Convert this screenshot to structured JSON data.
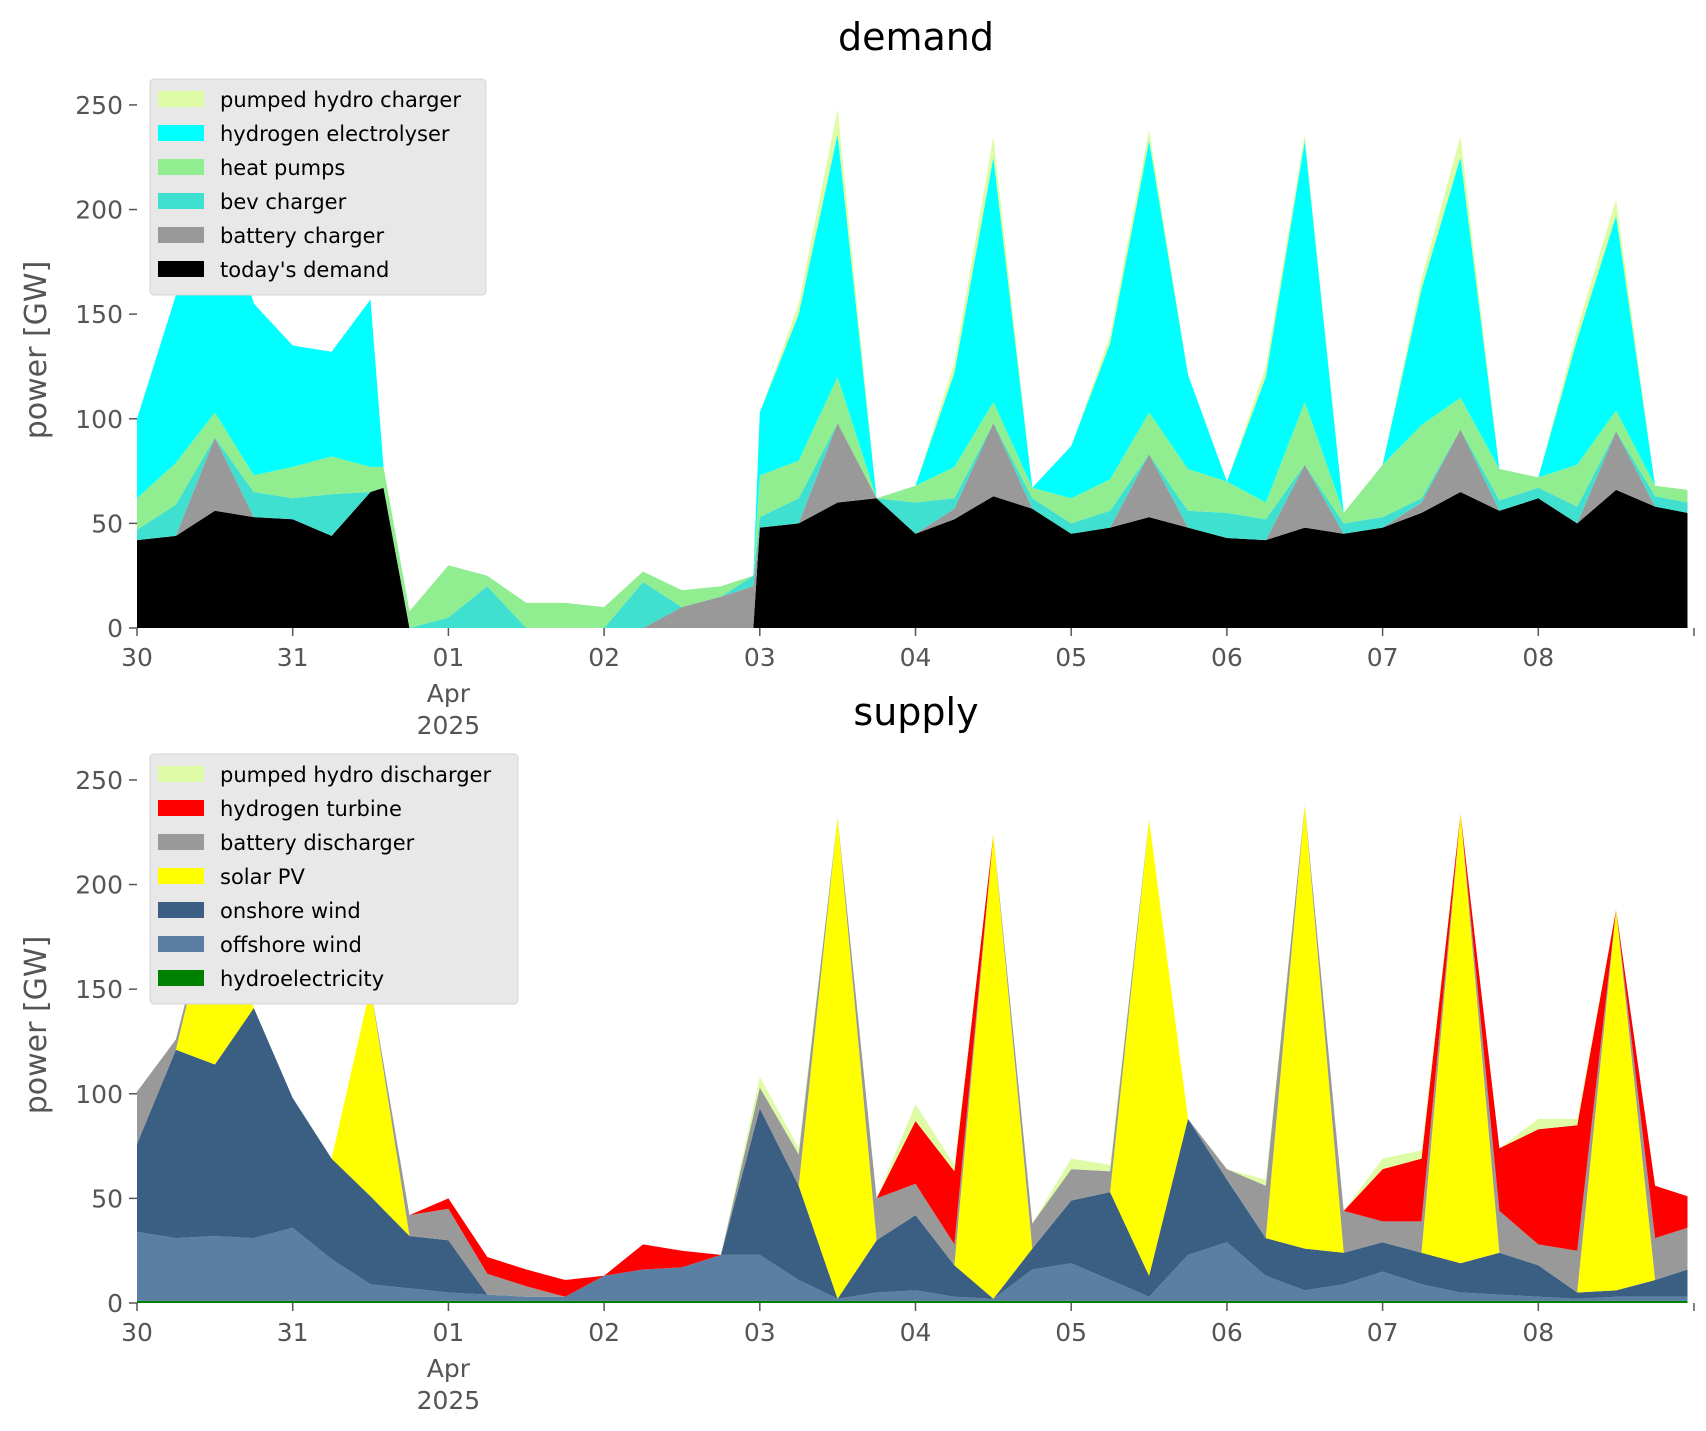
{
  "chart_data": [
    {
      "type": "area",
      "stacked": true,
      "title": "demand",
      "xlabel": "",
      "ylabel": "power [GW]",
      "x_range": [
        "2025-03-30",
        "2025-04-09"
      ],
      "x_ticks": [
        {
          "date": "2025-03-30",
          "label": "30",
          "sub": []
        },
        {
          "date": "2025-03-31",
          "label": "31",
          "sub": []
        },
        {
          "date": "2025-04-01",
          "label": "01",
          "sub": [
            "Apr",
            "2025"
          ]
        },
        {
          "date": "2025-04-02",
          "label": "02",
          "sub": []
        },
        {
          "date": "2025-04-03",
          "label": "03",
          "sub": []
        },
        {
          "date": "2025-04-04",
          "label": "04",
          "sub": []
        },
        {
          "date": "2025-04-05",
          "label": "05",
          "sub": []
        },
        {
          "date": "2025-04-06",
          "label": "06",
          "sub": []
        },
        {
          "date": "2025-04-07",
          "label": "07",
          "sub": []
        },
        {
          "date": "2025-04-08",
          "label": "08",
          "sub": []
        },
        {
          "date": "2025-04-09",
          "label": "",
          "sub": []
        }
      ],
      "ylim": [
        0,
        260
      ],
      "y_ticks": [
        0,
        50,
        100,
        150,
        200,
        250
      ],
      "grid": false,
      "legend": "top-left",
      "x": [
        "2025-03-30 00:00",
        "2025-03-30 06:00",
        "2025-03-30 12:00",
        "2025-03-30 18:00",
        "2025-03-31 00:00",
        "2025-03-31 06:00",
        "2025-03-31 12:00",
        "2025-03-31 14:00",
        "2025-03-31 18:00",
        "2025-04-01 00:00",
        "2025-04-01 06:00",
        "2025-04-01 12:00",
        "2025-04-01 18:00",
        "2025-04-02 00:00",
        "2025-04-02 06:00",
        "2025-04-02 12:00",
        "2025-04-02 18:00",
        "2025-04-02 23:00",
        "2025-04-03 00:00",
        "2025-04-03 06:00",
        "2025-04-03 12:00",
        "2025-04-03 18:00",
        "2025-04-04 00:00",
        "2025-04-04 06:00",
        "2025-04-04 12:00",
        "2025-04-04 18:00",
        "2025-04-05 00:00",
        "2025-04-05 06:00",
        "2025-04-05 12:00",
        "2025-04-05 18:00",
        "2025-04-06 00:00",
        "2025-04-06 06:00",
        "2025-04-06 12:00",
        "2025-04-06 18:00",
        "2025-04-07 00:00",
        "2025-04-07 06:00",
        "2025-04-07 12:00",
        "2025-04-07 18:00",
        "2025-04-08 00:00",
        "2025-04-08 06:00",
        "2025-04-08 12:00",
        "2025-04-08 18:00",
        "2025-04-08 23:00"
      ],
      "series": [
        {
          "name": "today's demand",
          "color": "#000000",
          "values": [
            42,
            44,
            56,
            53,
            52,
            44,
            65,
            67,
            0,
            0,
            0,
            0,
            0,
            0,
            0,
            0,
            0,
            0,
            48,
            50,
            60,
            62,
            45,
            52,
            63,
            57,
            45,
            48,
            53,
            48,
            43,
            42,
            48,
            45,
            48,
            55,
            65,
            56,
            62,
            50,
            66,
            58,
            55
          ]
        },
        {
          "name": "battery charger",
          "color": "#999999",
          "values": [
            0,
            0,
            35,
            0,
            0,
            0,
            0,
            0,
            0,
            0,
            0,
            0,
            0,
            0,
            0,
            10,
            15,
            20,
            0,
            0,
            38,
            0,
            0,
            5,
            35,
            0,
            0,
            0,
            30,
            0,
            0,
            0,
            30,
            0,
            0,
            5,
            30,
            0,
            0,
            0,
            28,
            0,
            0
          ]
        },
        {
          "name": "bev charger",
          "color": "#40e0d0",
          "values": [
            5,
            15,
            0,
            12,
            10,
            20,
            0,
            0,
            0,
            5,
            20,
            0,
            0,
            0,
            22,
            0,
            0,
            5,
            5,
            12,
            0,
            0,
            15,
            5,
            0,
            5,
            5,
            8,
            0,
            8,
            12,
            10,
            0,
            5,
            5,
            2,
            0,
            5,
            5,
            8,
            0,
            5,
            5
          ]
        },
        {
          "name": "heat pumps",
          "color": "#90ee90",
          "values": [
            15,
            20,
            12,
            8,
            15,
            18,
            12,
            10,
            8,
            25,
            5,
            12,
            12,
            10,
            5,
            8,
            5,
            0,
            20,
            18,
            22,
            0,
            8,
            15,
            10,
            5,
            12,
            15,
            20,
            20,
            15,
            8,
            30,
            5,
            25,
            35,
            15,
            15,
            5,
            20,
            10,
            5,
            6
          ]
        },
        {
          "name": "hydrogen electrolyser",
          "color": "#00ffff",
          "values": [
            38,
            80,
            118,
            82,
            58,
            50,
            80,
            0,
            0,
            0,
            0,
            0,
            0,
            0,
            0,
            0,
            0,
            0,
            30,
            70,
            116,
            0,
            0,
            45,
            117,
            0,
            25,
            65,
            130,
            45,
            0,
            60,
            125,
            0,
            0,
            65,
            115,
            0,
            0,
            60,
            93,
            0,
            0
          ]
        },
        {
          "name": "pumped hydro charger",
          "color": "#ddfca5",
          "values": [
            0,
            0,
            0,
            0,
            0,
            0,
            0,
            0,
            0,
            0,
            0,
            0,
            0,
            0,
            0,
            0,
            0,
            0,
            0,
            5,
            12,
            0,
            0,
            5,
            10,
            0,
            0,
            4,
            5,
            0,
            0,
            5,
            3,
            0,
            0,
            5,
            10,
            0,
            0,
            5,
            8,
            0,
            0
          ]
        }
      ]
    },
    {
      "type": "area",
      "stacked": true,
      "title": "supply",
      "xlabel": "",
      "ylabel": "power [GW]",
      "x_range": [
        "2025-03-30",
        "2025-04-09"
      ],
      "x_ticks": [
        {
          "date": "2025-03-30",
          "label": "30",
          "sub": []
        },
        {
          "date": "2025-03-31",
          "label": "31",
          "sub": []
        },
        {
          "date": "2025-04-01",
          "label": "01",
          "sub": [
            "Apr",
            "2025"
          ]
        },
        {
          "date": "2025-04-02",
          "label": "02",
          "sub": []
        },
        {
          "date": "2025-04-03",
          "label": "03",
          "sub": []
        },
        {
          "date": "2025-04-04",
          "label": "04",
          "sub": []
        },
        {
          "date": "2025-04-05",
          "label": "05",
          "sub": []
        },
        {
          "date": "2025-04-06",
          "label": "06",
          "sub": []
        },
        {
          "date": "2025-04-07",
          "label": "07",
          "sub": []
        },
        {
          "date": "2025-04-08",
          "label": "08",
          "sub": []
        },
        {
          "date": "2025-04-09",
          "label": "",
          "sub": []
        }
      ],
      "ylim": [
        0,
        260
      ],
      "y_ticks": [
        0,
        50,
        100,
        150,
        200,
        250
      ],
      "grid": false,
      "legend": "top-left",
      "x": [
        "2025-03-30 00:00",
        "2025-03-30 06:00",
        "2025-03-30 12:00",
        "2025-03-30 18:00",
        "2025-03-31 00:00",
        "2025-03-31 06:00",
        "2025-03-31 12:00",
        "2025-03-31 18:00",
        "2025-04-01 00:00",
        "2025-04-01 06:00",
        "2025-04-01 12:00",
        "2025-04-01 18:00",
        "2025-04-02 00:00",
        "2025-04-02 06:00",
        "2025-04-02 12:00",
        "2025-04-02 18:00",
        "2025-04-03 00:00",
        "2025-04-03 06:00",
        "2025-04-03 12:00",
        "2025-04-03 18:00",
        "2025-04-04 00:00",
        "2025-04-04 06:00",
        "2025-04-04 12:00",
        "2025-04-04 18:00",
        "2025-04-05 00:00",
        "2025-04-05 06:00",
        "2025-04-05 12:00",
        "2025-04-05 18:00",
        "2025-04-06 00:00",
        "2025-04-06 06:00",
        "2025-04-06 12:00",
        "2025-04-06 18:00",
        "2025-04-07 00:00",
        "2025-04-07 06:00",
        "2025-04-07 12:00",
        "2025-04-07 18:00",
        "2025-04-08 00:00",
        "2025-04-08 06:00",
        "2025-04-08 12:00",
        "2025-04-08 18:00",
        "2025-04-08 23:00"
      ],
      "series": [
        {
          "name": "hydroelectricity",
          "color": "#008000",
          "values": [
            1,
            1,
            1,
            1,
            1,
            1,
            1,
            1,
            1,
            1,
            1,
            1,
            1,
            1,
            1,
            1,
            1,
            1,
            1,
            1,
            1,
            1,
            1,
            1,
            1,
            1,
            1,
            1,
            1,
            1,
            1,
            1,
            1,
            1,
            1,
            1,
            1,
            1,
            1,
            1,
            1
          ]
        },
        {
          "name": "offshore wind",
          "color": "#5a7fa2",
          "values": [
            33,
            30,
            31,
            30,
            35,
            20,
            8,
            6,
            4,
            3,
            2,
            2,
            12,
            15,
            16,
            22,
            22,
            10,
            1,
            4,
            5,
            2,
            1,
            15,
            18,
            10,
            2,
            22,
            28,
            12,
            5,
            8,
            14,
            8,
            4,
            3,
            2,
            1,
            2,
            2,
            2
          ]
        },
        {
          "name": "onshore wind",
          "color": "#3a5f82",
          "values": [
            42,
            90,
            82,
            110,
            62,
            48,
            42,
            25,
            25,
            0,
            0,
            0,
            0,
            0,
            0,
            0,
            70,
            45,
            0,
            25,
            36,
            15,
            0,
            10,
            30,
            42,
            10,
            65,
            30,
            18,
            20,
            15,
            14,
            15,
            14,
            20,
            15,
            3,
            3,
            8,
            13
          ]
        },
        {
          "name": "solar PV",
          "color": "#ffff00",
          "values": [
            0,
            0,
            85,
            0,
            0,
            0,
            100,
            0,
            0,
            0,
            0,
            0,
            0,
            0,
            0,
            0,
            0,
            0,
            230,
            0,
            0,
            0,
            222,
            0,
            0,
            0,
            218,
            0,
            0,
            0,
            212,
            0,
            0,
            0,
            215,
            0,
            0,
            0,
            182,
            0,
            0
          ]
        },
        {
          "name": "battery discharger",
          "color": "#999999",
          "values": [
            25,
            5,
            0,
            0,
            0,
            0,
            0,
            10,
            15,
            10,
            5,
            0,
            0,
            0,
            0,
            0,
            10,
            15,
            0,
            20,
            15,
            10,
            0,
            12,
            15,
            10,
            0,
            0,
            5,
            25,
            0,
            20,
            10,
            15,
            0,
            20,
            10,
            20,
            0,
            20,
            20
          ]
        },
        {
          "name": "hydrogen turbine",
          "color": "#ff0000",
          "values": [
            0,
            0,
            0,
            0,
            0,
            0,
            0,
            0,
            5,
            8,
            8,
            8,
            0,
            12,
            8,
            0,
            0,
            0,
            0,
            0,
            30,
            35,
            0,
            0,
            0,
            0,
            0,
            0,
            0,
            0,
            0,
            0,
            25,
            30,
            0,
            30,
            55,
            60,
            0,
            25,
            15
          ]
        },
        {
          "name": "pumped hydro discharger",
          "color": "#ddfca5",
          "values": [
            0,
            0,
            0,
            0,
            0,
            0,
            0,
            0,
            0,
            0,
            0,
            0,
            0,
            0,
            0,
            0,
            5,
            3,
            0,
            0,
            8,
            3,
            0,
            0,
            5,
            3,
            0,
            0,
            0,
            3,
            0,
            0,
            5,
            4,
            0,
            0,
            5,
            3,
            0,
            0,
            0
          ]
        }
      ]
    }
  ]
}
